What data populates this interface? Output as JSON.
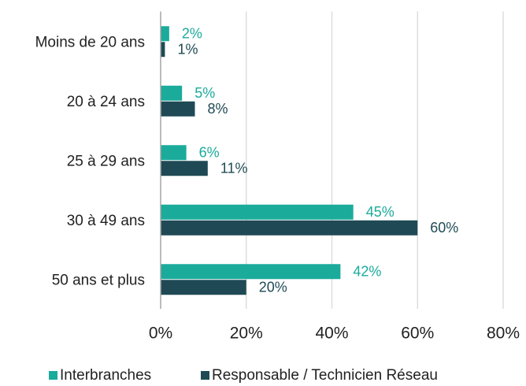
{
  "chart_data": {
    "type": "bar",
    "orientation": "horizontal",
    "categories": [
      "Moins de 20 ans",
      "20 à 24 ans",
      "25 à 29 ans",
      "30 à 49 ans",
      "50 ans et plus"
    ],
    "series": [
      {
        "name": "Interbranches",
        "color": "#1aab9b",
        "values": [
          2,
          5,
          6,
          45,
          42
        ],
        "value_labels": [
          "2%",
          "5%",
          "6%",
          "45%",
          "42%"
        ]
      },
      {
        "name": "Responsable / Technicien Réseau",
        "color": "#1f4a55",
        "values": [
          1,
          8,
          11,
          60,
          20
        ],
        "value_labels": [
          "1%",
          "8%",
          "11%",
          "60%",
          "20%"
        ]
      }
    ],
    "xlim": [
      0,
      80
    ],
    "xticks": [
      {
        "value": 0,
        "label": "0%"
      },
      {
        "value": 20,
        "label": "20%"
      },
      {
        "value": 40,
        "label": "40%"
      },
      {
        "value": 60,
        "label": "60%"
      },
      {
        "value": 80,
        "label": "80%"
      }
    ],
    "grid": true,
    "legend": "bottom"
  }
}
